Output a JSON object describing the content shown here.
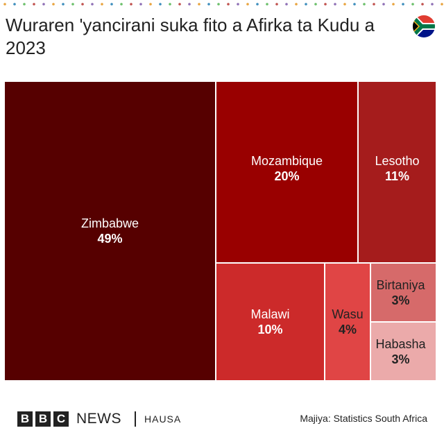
{
  "header": {
    "title": "Wuraren 'yancirani suka fito a Afirka ta Kudu a 2023",
    "flag_icon": "south-africa-flag-icon"
  },
  "chart_data": {
    "type": "treemap",
    "title": "Wuraren 'yancirani suka fito a Afirka ta Kudu a 2023",
    "items": [
      {
        "name": "Zimbabwe",
        "label": "49%",
        "value": 49,
        "color": "#560000",
        "text_color": "#ffffff"
      },
      {
        "name": "Mozambique",
        "label": "20%",
        "value": 20,
        "color": "#990000",
        "text_color": "#ffffff"
      },
      {
        "name": "Lesotho",
        "label": "11%",
        "value": 11,
        "color": "#a51c1c",
        "text_color": "#ffffff"
      },
      {
        "name": "Malawi",
        "label": "10%",
        "value": 10,
        "color": "#cc2a2a",
        "text_color": "#ffffff"
      },
      {
        "name": "Wasu",
        "label": "4%",
        "value": 4,
        "color": "#e04545",
        "text_color": "#222222"
      },
      {
        "name": "Birtaniya",
        "label": "3%",
        "value": 3,
        "color": "#d66a6a",
        "text_color": "#222222"
      },
      {
        "name": "Habasha",
        "label": "3%",
        "value": 3,
        "color": "#ebaaaa",
        "text_color": "#222222"
      }
    ]
  },
  "footer": {
    "brand_letters": [
      "B",
      "B",
      "C"
    ],
    "brand_news": "NEWS",
    "service": "HAUSA",
    "source": "Majiya: Statistics South Africa"
  }
}
